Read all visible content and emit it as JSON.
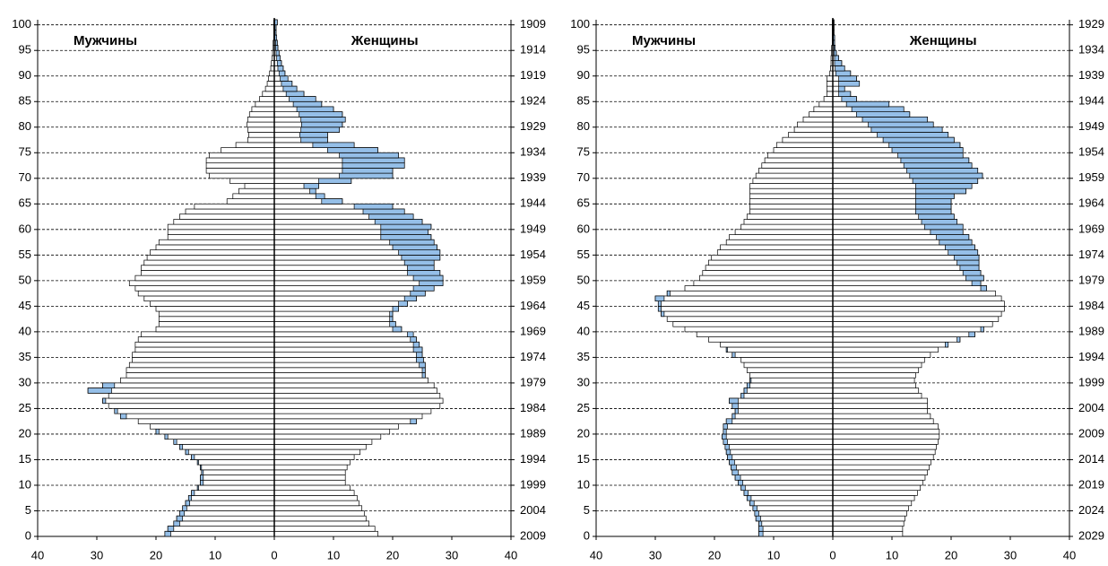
{
  "chart_data": [
    {
      "type": "pyramid",
      "series": [
        {
          "name": "Мужчины",
          "color": "#ffffff",
          "values": [
            18.5,
            18,
            17,
            16.5,
            16,
            15.5,
            15,
            14.5,
            14,
            13,
            12.5,
            12.5,
            12.3,
            12.5,
            13,
            14,
            15,
            16,
            17,
            18.5,
            20,
            21,
            23,
            26,
            27,
            28,
            29,
            28,
            31.5,
            29,
            26,
            25,
            25,
            24.5,
            24,
            24,
            23.5,
            23.5,
            23,
            22.5,
            20,
            19.5,
            19.5,
            19.5,
            20,
            21,
            22,
            23,
            23.5,
            24.5,
            23.5,
            22.5,
            22.5,
            22,
            21.5,
            21,
            20,
            19.5,
            18,
            18,
            18,
            17,
            16,
            15,
            13.5,
            8,
            7,
            6,
            5,
            7.5,
            11,
            11.5,
            11.5,
            11.5,
            11,
            9,
            6.5,
            4.5,
            4.3,
            4.5,
            4.6,
            4.5,
            4.2,
            3.8,
            3.2,
            2.5,
            2,
            1.5,
            1.2,
            1,
            0.8,
            0.6,
            0.5,
            0.4,
            0.3,
            0.2,
            0.2,
            0.1,
            0.1,
            0.1,
            0.1
          ]
        },
        {
          "name": "Женщины",
          "color": "#ffffff",
          "values": [
            17.5,
            17,
            16,
            15.5,
            15.2,
            14.8,
            14.3,
            14,
            13.5,
            12.8,
            12,
            12,
            12,
            12.3,
            12.8,
            13.5,
            14.5,
            15.5,
            16.5,
            18,
            19.5,
            21,
            24,
            25,
            26.5,
            28,
            28.5,
            28,
            27.5,
            27,
            26,
            25.5,
            25.5,
            25.5,
            25.2,
            25,
            25,
            24.5,
            24,
            23.5,
            21.5,
            20.5,
            20,
            20,
            21,
            22.5,
            24,
            25.5,
            27,
            28.5,
            28.5,
            28,
            27,
            27,
            28,
            28,
            27.5,
            27,
            26.5,
            26,
            26.5,
            25,
            23.5,
            22,
            20,
            11.5,
            8.5,
            7,
            7.5,
            13,
            20,
            20,
            22,
            22,
            21,
            17.5,
            13.5,
            9,
            9,
            11,
            11.5,
            12,
            11.5,
            10,
            8,
            7,
            5,
            3.8,
            3,
            2.3,
            1.8,
            1.5,
            1.2,
            1,
            0.8,
            0.6,
            0.5,
            0.4,
            0.3,
            0.3,
            0.5
          ]
        }
      ],
      "excess_color": "#95bfe8",
      "xlim": [
        -40,
        40
      ],
      "xticks": [
        {
          "value": -40,
          "label": "40"
        },
        {
          "value": -30,
          "label": "30"
        },
        {
          "value": -20,
          "label": "20"
        },
        {
          "value": -10,
          "label": "10"
        },
        0,
        10,
        20,
        30,
        40
      ],
      "ylim": [
        0,
        101
      ],
      "yticks": [
        0,
        5,
        10,
        15,
        20,
        25,
        30,
        35,
        40,
        45,
        50,
        55,
        60,
        65,
        70,
        75,
        80,
        85,
        90,
        95,
        100
      ],
      "y2lim": [
        2009,
        1908
      ],
      "y2ticks": [
        1909,
        1914,
        1919,
        1924,
        1929,
        1934,
        1939,
        1944,
        1949,
        1954,
        1959,
        1964,
        1969,
        1974,
        1979,
        1984,
        1989,
        1994,
        1999,
        2004,
        2009
      ],
      "grid": true
    },
    {
      "type": "pyramid",
      "series": [
        {
          "name": "Мужчины",
          "color": "#ffffff",
          "values": [
            12.5,
            12.5,
            12.5,
            13,
            13.2,
            13.5,
            14,
            14.5,
            15,
            15.5,
            16,
            16.5,
            17,
            17.2,
            17.5,
            17.8,
            18,
            18.2,
            18.5,
            18.7,
            18.5,
            18.5,
            18,
            17,
            16.5,
            17,
            17.5,
            15.5,
            15,
            14.5,
            14,
            14,
            14.5,
            15,
            15.5,
            17,
            18,
            19,
            21,
            23,
            25,
            27,
            28,
            29,
            29.5,
            29.5,
            30,
            28,
            25,
            23.5,
            22.5,
            22,
            21.5,
            21,
            20.5,
            19.5,
            19,
            18,
            17.5,
            16.5,
            15.5,
            15,
            14.5,
            14,
            14,
            14,
            14,
            14,
            14,
            13.5,
            13,
            12.5,
            12,
            11.5,
            11,
            10,
            9.5,
            8.5,
            7.5,
            6.5,
            6,
            5,
            4,
            3.2,
            2.3,
            1.5,
            1,
            1,
            1,
            1,
            0.5,
            0.4,
            0.3,
            0.3,
            0.2,
            0.2,
            0.1,
            0.1,
            0.1,
            0.1,
            0.1
          ]
        },
        {
          "name": "Женщины",
          "color": "#ffffff",
          "values": [
            11.8,
            11.8,
            12,
            12.2,
            12.5,
            12.8,
            13.3,
            13.8,
            14.3,
            14.8,
            15.2,
            15.6,
            16,
            16.3,
            16.6,
            17,
            17.3,
            17.5,
            17.8,
            18,
            18,
            17.8,
            17,
            16.5,
            16,
            16,
            16,
            15,
            14.5,
            14,
            13.8,
            14,
            14.5,
            15,
            15.5,
            16.5,
            17.8,
            19.5,
            21.5,
            24,
            25.5,
            27,
            28,
            28.5,
            29,
            29,
            28.5,
            27.5,
            26,
            25,
            25.5,
            25,
            24.7,
            24.7,
            24.7,
            24.5,
            24,
            23.5,
            23,
            22,
            22,
            21,
            20.5,
            20,
            20,
            20,
            20.5,
            22.5,
            23.5,
            24.5,
            25.3,
            24.5,
            23.5,
            23,
            22,
            22,
            21.5,
            20.5,
            19.5,
            18.5,
            17,
            16,
            13,
            12,
            9.5,
            4,
            3,
            2,
            4.5,
            4,
            3,
            2,
            1.5,
            1,
            0.6,
            0.4,
            0.3,
            0.3,
            0.2,
            0.2,
            0.2
          ]
        }
      ],
      "excess_color": "#95bfe8",
      "xlim": [
        -40,
        40
      ],
      "xticks": [
        {
          "value": -40,
          "label": "40"
        },
        {
          "value": -30,
          "label": "30"
        },
        {
          "value": -20,
          "label": "20"
        },
        {
          "value": -10,
          "label": "10"
        },
        0,
        10,
        20,
        30,
        40
      ],
      "ylim": [
        0,
        101
      ],
      "yticks": [
        0,
        5,
        10,
        15,
        20,
        25,
        30,
        35,
        40,
        45,
        50,
        55,
        60,
        65,
        70,
        75,
        80,
        85,
        90,
        95,
        100
      ],
      "y2lim": [
        2029,
        1928
      ],
      "y2ticks": [
        1929,
        1934,
        1939,
        1944,
        1949,
        1954,
        1959,
        1964,
        1969,
        1974,
        1979,
        1984,
        1989,
        1994,
        1999,
        2004,
        2009,
        2014,
        2019,
        2024,
        2029
      ],
      "grid": true
    }
  ]
}
